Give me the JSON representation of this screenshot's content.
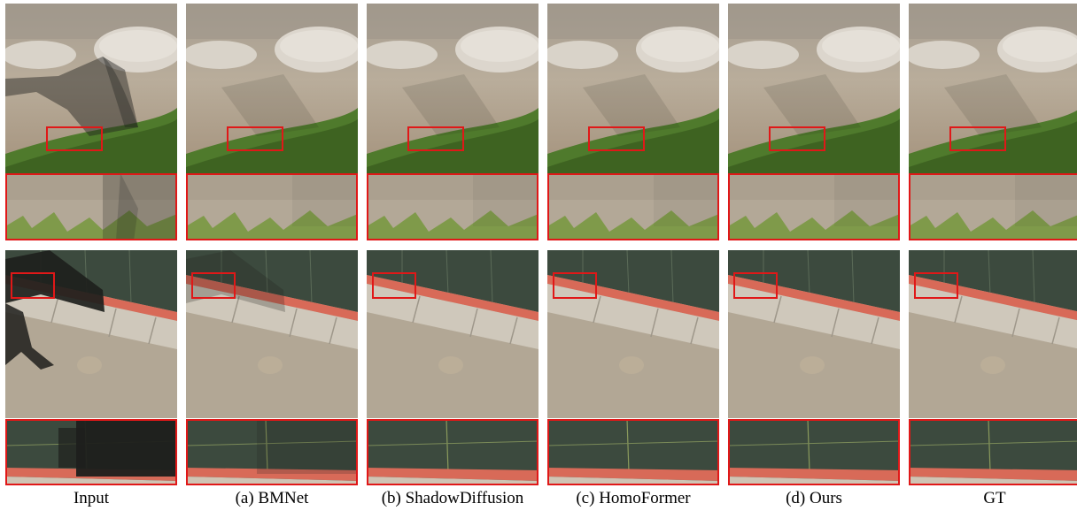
{
  "figure": {
    "columns": [
      {
        "id": "input",
        "caption": "Input",
        "top_shadow": "strong",
        "bottom_shadow": "strong"
      },
      {
        "id": "bmnet",
        "caption": "(a) BMNet",
        "top_shadow": "faint",
        "bottom_shadow": "residual"
      },
      {
        "id": "shadowdiffusion",
        "caption": "(b) ShadowDiffusion",
        "top_shadow": "faint",
        "bottom_shadow": "none"
      },
      {
        "id": "homoformer",
        "caption": "(c) HomoFormer",
        "top_shadow": "faint",
        "bottom_shadow": "none"
      },
      {
        "id": "ours",
        "caption": "(d) Ours",
        "top_shadow": "faint",
        "bottom_shadow": "none"
      },
      {
        "id": "gt",
        "caption": "GT",
        "top_shadow": "faint",
        "bottom_shadow": "none"
      }
    ],
    "colors": {
      "highlight_box": "#e01818",
      "ground": "#b7aa97",
      "stone": "#d9d3c9",
      "grass": "#4f7a2c",
      "court": "#3c4a3e",
      "curb": "#d86a58",
      "sidewalk": "#cfc8bb",
      "shadow": "#1e1f1c"
    }
  }
}
